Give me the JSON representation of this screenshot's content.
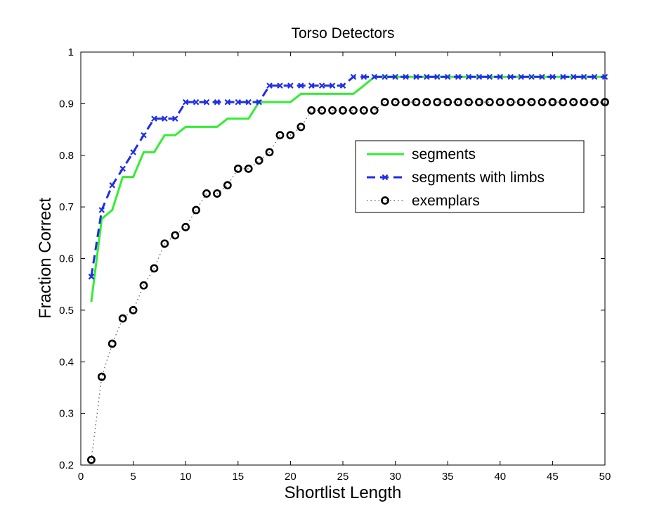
{
  "chart_data": {
    "type": "line",
    "title": "Torso Detectors",
    "xlabel": "Shortlist Length",
    "ylabel": "Fraction Correct",
    "xlim": [
      0,
      50
    ],
    "ylim": [
      0.2,
      1
    ],
    "xticks": [
      0,
      5,
      10,
      15,
      20,
      25,
      30,
      35,
      40,
      45,
      50
    ],
    "yticks": [
      0.2,
      0.3,
      0.4,
      0.5,
      0.6,
      0.7,
      0.8,
      0.9,
      1
    ],
    "xtick_labels": [
      "0",
      "5",
      "10",
      "15",
      "20",
      "25",
      "30",
      "35",
      "40",
      "45",
      "50"
    ],
    "ytick_labels": [
      "0.2",
      "0.3",
      "0.4",
      "0.5",
      "0.6",
      "0.7",
      "0.8",
      "0.9",
      "1"
    ],
    "grid": false,
    "legend_position": "center-right",
    "series": [
      {
        "name": "segments",
        "color": "#33ee33",
        "style": "solid",
        "marker": "none",
        "x": [
          1,
          2,
          3,
          4,
          5,
          6,
          7,
          8,
          9,
          10,
          11,
          12,
          13,
          14,
          15,
          16,
          17,
          18,
          19,
          20,
          21,
          22,
          23,
          24,
          25,
          26,
          27,
          28,
          29,
          30,
          31,
          32,
          33,
          34,
          35,
          36,
          37,
          38,
          39,
          40,
          41,
          42,
          43,
          44,
          45,
          46,
          47,
          48,
          49,
          50
        ],
        "values": [
          0.516,
          0.677,
          0.694,
          0.758,
          0.758,
          0.806,
          0.806,
          0.839,
          0.839,
          0.855,
          0.855,
          0.855,
          0.855,
          0.871,
          0.871,
          0.871,
          0.903,
          0.903,
          0.903,
          0.903,
          0.919,
          0.919,
          0.919,
          0.919,
          0.919,
          0.919,
          0.935,
          0.952,
          0.952,
          0.952,
          0.952,
          0.952,
          0.952,
          0.952,
          0.952,
          0.952,
          0.952,
          0.952,
          0.952,
          0.952,
          0.952,
          0.952,
          0.952,
          0.952,
          0.952,
          0.952,
          0.952,
          0.952,
          0.952,
          0.952
        ]
      },
      {
        "name": "segments with limbs",
        "color": "#1f2ee8",
        "style": "dashed",
        "marker": "x",
        "x": [
          1,
          2,
          3,
          4,
          5,
          6,
          7,
          8,
          9,
          10,
          11,
          12,
          13,
          14,
          15,
          16,
          17,
          18,
          19,
          20,
          21,
          22,
          23,
          24,
          25,
          26,
          27,
          28,
          29,
          30,
          31,
          32,
          33,
          34,
          35,
          36,
          37,
          38,
          39,
          40,
          41,
          42,
          43,
          44,
          45,
          46,
          47,
          48,
          49,
          50
        ],
        "values": [
          0.565,
          0.694,
          0.742,
          0.774,
          0.806,
          0.839,
          0.871,
          0.871,
          0.871,
          0.903,
          0.903,
          0.903,
          0.903,
          0.903,
          0.903,
          0.903,
          0.903,
          0.935,
          0.935,
          0.935,
          0.935,
          0.935,
          0.935,
          0.935,
          0.935,
          0.952,
          0.952,
          0.952,
          0.952,
          0.952,
          0.952,
          0.952,
          0.952,
          0.952,
          0.952,
          0.952,
          0.952,
          0.952,
          0.952,
          0.952,
          0.952,
          0.952,
          0.952,
          0.952,
          0.952,
          0.952,
          0.952,
          0.952,
          0.952,
          0.952
        ]
      },
      {
        "name": "exemplars",
        "color": "#000000",
        "style": "dotted",
        "marker": "o",
        "x": [
          1,
          2,
          3,
          4,
          5,
          6,
          7,
          8,
          9,
          10,
          11,
          12,
          13,
          14,
          15,
          16,
          17,
          18,
          19,
          20,
          21,
          22,
          23,
          24,
          25,
          26,
          27,
          28,
          29,
          30,
          31,
          32,
          33,
          34,
          35,
          36,
          37,
          38,
          39,
          40,
          41,
          42,
          43,
          44,
          45,
          46,
          47,
          48,
          49,
          50
        ],
        "values": [
          0.21,
          0.371,
          0.435,
          0.484,
          0.5,
          0.548,
          0.581,
          0.629,
          0.645,
          0.661,
          0.694,
          0.726,
          0.726,
          0.742,
          0.774,
          0.774,
          0.79,
          0.806,
          0.839,
          0.839,
          0.855,
          0.887,
          0.887,
          0.887,
          0.887,
          0.887,
          0.887,
          0.887,
          0.903,
          0.903,
          0.903,
          0.903,
          0.903,
          0.903,
          0.903,
          0.903,
          0.903,
          0.903,
          0.903,
          0.903,
          0.903,
          0.903,
          0.903,
          0.903,
          0.903,
          0.903,
          0.903,
          0.903,
          0.903,
          0.903
        ]
      }
    ]
  }
}
